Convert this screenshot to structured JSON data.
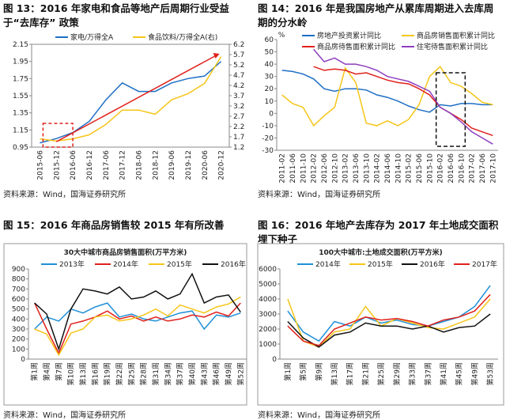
{
  "chart_data": [
    {
      "type": "line",
      "caption": "图 13：2016 年家电和食品等地产后周期行业受益于“去库存” 政策",
      "source": "资料来源：Wind，国海证券研究所",
      "categories": [
        "2015-06",
        "2015-12",
        "2016-06",
        "2016-12",
        "2017-06",
        "2017-12",
        "2018-06",
        "2018-12",
        "2019-06",
        "2019-12",
        "2020-06",
        "2020-12"
      ],
      "series": [
        {
          "name": "家电/万得全A",
          "color": "#1f6fc5",
          "values": [
            1.0,
            1.05,
            1.12,
            1.25,
            1.5,
            1.7,
            1.6,
            1.6,
            1.7,
            1.75,
            1.78,
            1.95
          ]
        },
        {
          "name": "食品饮料/万得全A(右)",
          "color": "#f5c518",
          "axis": "y2",
          "values": [
            1.6,
            1.5,
            1.6,
            1.8,
            2.3,
            3.0,
            3.0,
            2.8,
            3.5,
            3.8,
            4.3,
            5.6
          ]
        }
      ],
      "ylim": [
        0.95,
        2.15
      ],
      "yticks": [
        0.95,
        1.15,
        1.35,
        1.55,
        1.75,
        1.95,
        2.15
      ],
      "y2lim": [
        1.2,
        6.2
      ],
      "y2ticks": [
        1.2,
        1.7,
        2.2,
        2.7,
        3.2,
        3.7,
        4.2,
        4.7,
        5.2,
        5.7,
        6.2
      ]
    },
    {
      "type": "line",
      "caption": "图 14：2016 年是我国房地产从累库周期进入去库周期的分水岭",
      "source": "资料来源：Wind，国海证券研究所",
      "y_label": "%",
      "categories": [
        "2011-02",
        "2011-06",
        "2011-10",
        "2012-02",
        "2012-06",
        "2012-10",
        "2013-02",
        "2013-06",
        "2013-10",
        "2014-02",
        "2014-06",
        "2014-10",
        "2015-02",
        "2015-06",
        "2015-10",
        "2016-02",
        "2016-06",
        "2016-10",
        "2017-02",
        "2017-06",
        "2017-10"
      ],
      "series": [
        {
          "name": "房地产投资累计同比",
          "color": "#1f6fc5",
          "values": [
            35,
            34,
            32,
            28,
            20,
            18,
            20,
            20,
            19,
            15,
            13,
            10,
            6,
            3,
            1,
            7,
            6,
            8,
            8,
            7,
            7
          ]
        },
        {
          "name": "商品房销售面积累计同比",
          "color": "#f5c518",
          "values": [
            15,
            8,
            5,
            -10,
            -2,
            5,
            37,
            25,
            -8,
            -10,
            -6,
            -10,
            -5,
            7,
            30,
            38,
            25,
            22,
            16,
            9,
            7
          ]
        },
        {
          "name": "商品房待售面积累计同比",
          "color": "#e0201b",
          "values": [
            null,
            null,
            null,
            38,
            35,
            36,
            35,
            32,
            33,
            30,
            27,
            25,
            24,
            20,
            15,
            5,
            0,
            -5,
            -12,
            -15,
            -18
          ]
        },
        {
          "name": "住宅待售面积累计同比",
          "color": "#8e3fbf",
          "values": [
            null,
            null,
            null,
            52,
            42,
            45,
            40,
            40,
            38,
            35,
            30,
            28,
            26,
            22,
            18,
            5,
            0,
            -7,
            -15,
            -20,
            -25
          ]
        }
      ],
      "ylim": [
        -30,
        60
      ],
      "yticks": [
        -30,
        -20,
        -10,
        0,
        10,
        20,
        30,
        40,
        50,
        60
      ]
    },
    {
      "type": "line",
      "caption": "图 15：2016 年商品房销售较 2015 年有所改善",
      "title": "30大中城市商品房销售面积(万平方米)",
      "source": "资料来源：Wind，国海证券研究所",
      "categories": [
        "第1周",
        "第4周",
        "第7周",
        "第10周",
        "第13周",
        "第16周",
        "第19周",
        "第22周",
        "第25周",
        "第28周",
        "第31周",
        "第34周",
        "第37周",
        "第40周",
        "第43周",
        "第46周",
        "第49周",
        "第52周"
      ],
      "series": [
        {
          "name": "2013年",
          "color": "#1f8fd6",
          "values": [
            300,
            420,
            380,
            500,
            460,
            520,
            560,
            420,
            450,
            400,
            380,
            420,
            460,
            480,
            300,
            440,
            420,
            460
          ]
        },
        {
          "name": "2014年",
          "color": "#e0201b",
          "values": [
            560,
            300,
            60,
            350,
            380,
            420,
            480,
            400,
            430,
            380,
            420,
            380,
            400,
            440,
            420,
            470,
            430,
            560
          ]
        },
        {
          "name": "2015年",
          "color": "#f5c518",
          "values": [
            300,
            250,
            40,
            260,
            300,
            420,
            440,
            380,
            400,
            440,
            500,
            430,
            540,
            500,
            460,
            520,
            550,
            620
          ]
        },
        {
          "name": "2016年",
          "color": "#111111",
          "values": [
            560,
            450,
            100,
            500,
            700,
            680,
            650,
            720,
            600,
            620,
            680,
            600,
            650,
            850,
            560,
            620,
            640,
            470
          ]
        }
      ],
      "ylim": [
        0,
        900
      ],
      "yticks": [
        0,
        100,
        200,
        300,
        400,
        500,
        600,
        700,
        800,
        900
      ]
    },
    {
      "type": "line",
      "caption": "图 16：2016 年地产去库存为 2017 年土地成交面积埋下种子",
      "title": "100大中城市:土地成交面积(万平方米)",
      "source": "资料来源：Wind，国海证券研究所",
      "categories": [
        "第1周",
        "第5周",
        "第9周",
        "第13周",
        "第17周",
        "第21周",
        "第25周",
        "第29周",
        "第33周",
        "第37周",
        "第41周",
        "第45周",
        "第49周",
        "第53周"
      ],
      "series": [
        {
          "name": "2014年",
          "color": "#1f8fd6",
          "values": [
            3200,
            1800,
            1200,
            2500,
            2200,
            2800,
            2400,
            2600,
            2300,
            2200,
            2500,
            2800,
            3500,
            4900
          ]
        },
        {
          "name": "2015年",
          "color": "#f5c518",
          "values": [
            4000,
            1200,
            800,
            1800,
            2000,
            3500,
            2200,
            2700,
            2400,
            2100,
            2000,
            2400,
            2800,
            4000
          ]
        },
        {
          "name": "2016年",
          "color": "#111111",
          "values": [
            2500,
            1400,
            800,
            1600,
            1800,
            2400,
            2200,
            2200,
            2000,
            2200,
            1800,
            2100,
            2200,
            3000
          ]
        },
        {
          "name": "2017年",
          "color": "#e0201b",
          "values": [
            2200,
            1200,
            900,
            2000,
            2400,
            2800,
            2600,
            2700,
            2500,
            2200,
            2600,
            2800,
            3200,
            4300
          ]
        }
      ],
      "ylim": [
        0,
        6000
      ],
      "yticks": [
        0,
        1000,
        2000,
        3000,
        4000,
        5000,
        6000
      ]
    }
  ]
}
